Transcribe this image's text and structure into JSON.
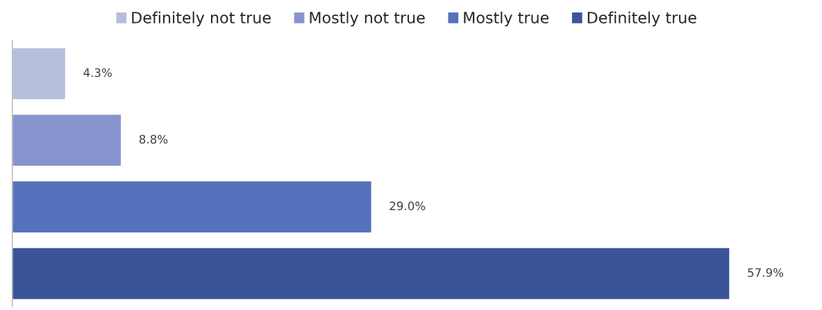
{
  "chart_data": {
    "type": "bar",
    "orientation": "horizontal",
    "categories": [
      null
    ],
    "series": [
      {
        "name": "Definitely not true",
        "color": "#b7bedb",
        "values": [
          4.3
        ],
        "value_labels": [
          "4.3%"
        ]
      },
      {
        "name": "Mostly not true",
        "color": "#8795cf",
        "values": [
          8.8
        ],
        "value_labels": [
          "8.8%"
        ]
      },
      {
        "name": "Mostly true",
        "color": "#5671bb",
        "values": [
          29.0
        ],
        "value_labels": [
          "29.0%"
        ]
      },
      {
        "name": "Definitely true",
        "color": "#3b5499",
        "values": [
          57.9
        ],
        "value_labels": [
          "57.9%"
        ]
      }
    ],
    "legend": "top",
    "grid": false
  }
}
